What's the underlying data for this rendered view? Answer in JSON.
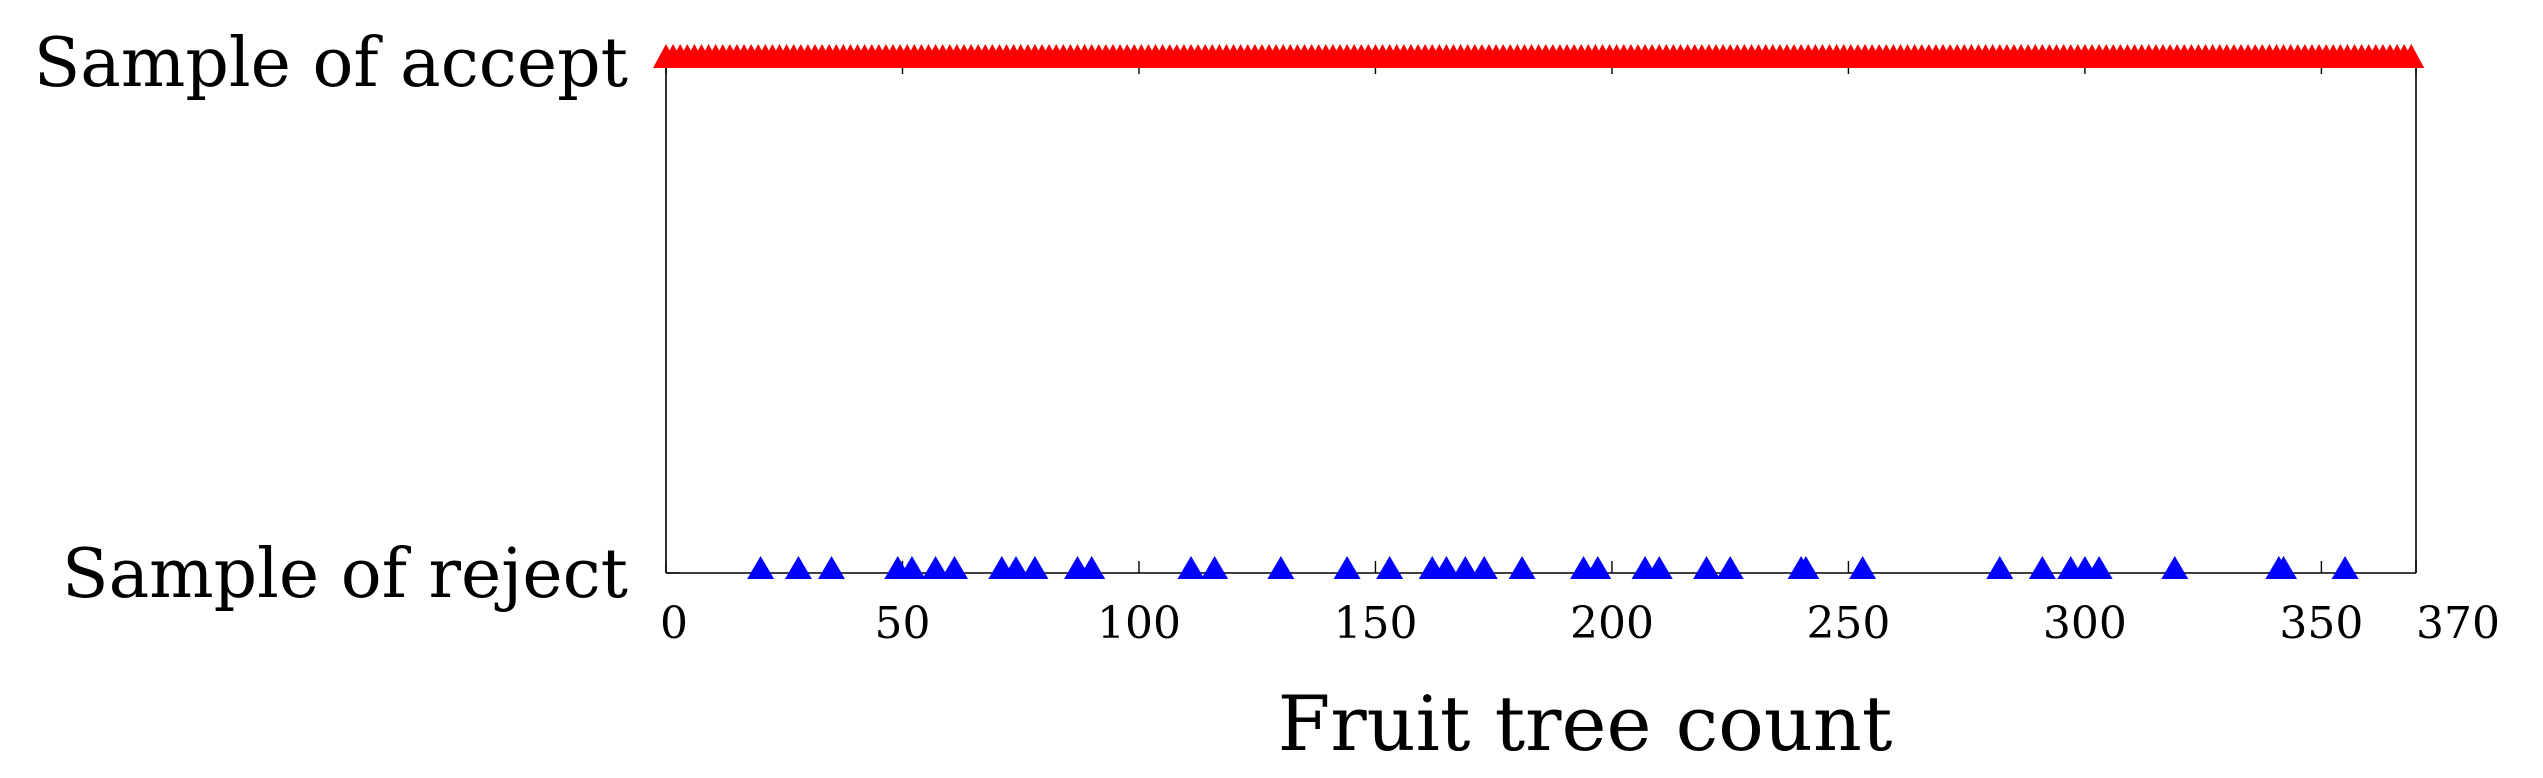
{
  "chart_data": {
    "type": "scatter",
    "title": "",
    "xlabel": "Fruit tree count",
    "ylabel": "",
    "xlim": [
      0,
      370
    ],
    "xticks": [
      "0",
      "50",
      "100",
      "150",
      "200",
      "250",
      "300",
      "350",
      "370"
    ],
    "ytick_labels": [
      "Sample of accept",
      "Sample of reject"
    ],
    "grid": false,
    "legend": "none",
    "series": [
      {
        "category": "Sample of accept",
        "color": "#ff0000",
        "marker": "triangle",
        "x": [
          0,
          1.5,
          3,
          4.5,
          6,
          7.5,
          9,
          10.5,
          12,
          13.5,
          15,
          16.5,
          18,
          19.5,
          21,
          22.5,
          24,
          25.5,
          27,
          28.5,
          30,
          31.5,
          33,
          34.5,
          36,
          37.5,
          39,
          40.5,
          42,
          43.5,
          45,
          46.5,
          48,
          49.5,
          51,
          52.5,
          54,
          55.5,
          57,
          58.5,
          60,
          61.5,
          63,
          64.5,
          66,
          67.5,
          69,
          70.5,
          72,
          73.5,
          75,
          76.5,
          78,
          79.5,
          81,
          82.5,
          84,
          85.5,
          87,
          88.5,
          90,
          91.5,
          93,
          94.5,
          96,
          97.5,
          99,
          100.5,
          102,
          103.5,
          105,
          106.5,
          108,
          109.5,
          111,
          112.5,
          114,
          115.5,
          117,
          118.5,
          120,
          121.5,
          123,
          124.5,
          126,
          127.5,
          129,
          130.5,
          132,
          133.5,
          135,
          136.5,
          138,
          139.5,
          141,
          142.5,
          144,
          145.5,
          147,
          148.5,
          150,
          151.5,
          153,
          154.5,
          156,
          157.5,
          159,
          160.5,
          162,
          163.5,
          165,
          166.5,
          168,
          169.5,
          171,
          172.5,
          174,
          175.5,
          177,
          178.5,
          180,
          181.5,
          183,
          184.5,
          186,
          187.5,
          189,
          190.5,
          192,
          193.5,
          195,
          196.5,
          198,
          199.5,
          201,
          202.5,
          204,
          205.5,
          207,
          208.5,
          210,
          211.5,
          213,
          214.5,
          216,
          217.5,
          219,
          220.5,
          222,
          223.5,
          225,
          226.5,
          228,
          229.5,
          231,
          232.5,
          234,
          235.5,
          237,
          238.5,
          240,
          241.5,
          243,
          244.5,
          246,
          247.5,
          249,
          250.5,
          252,
          253.5,
          255,
          256.5,
          258,
          259.5,
          261,
          262.5,
          264,
          265.5,
          267,
          268.5,
          270,
          271.5,
          273,
          274.5,
          276,
          277.5,
          279,
          280.5,
          282,
          283.5,
          285,
          286.5,
          288,
          289.5,
          291,
          292.5,
          294,
          295.5,
          297,
          298.5,
          300,
          301.5,
          303,
          304.5,
          306,
          307.5,
          309,
          310.5,
          312,
          313.5,
          315,
          316.5,
          318,
          319.5,
          321,
          322.5,
          324,
          325.5,
          327,
          328.5,
          330,
          331.5,
          333,
          334.5,
          336,
          337.5,
          339,
          340.5,
          342,
          343.5,
          345,
          346.5,
          348,
          349.5,
          351,
          352.5,
          354,
          355.5,
          357,
          358.5,
          360,
          361.5,
          363,
          364.5,
          366,
          367.5,
          369
        ]
      },
      {
        "category": "Sample of reject",
        "color": "#0000ff",
        "marker": "triangle",
        "x": [
          20,
          28,
          35,
          49,
          52,
          57,
          61,
          71,
          74,
          78,
          87,
          90,
          111,
          116,
          130,
          144,
          153,
          162,
          165,
          169,
          173,
          181,
          194,
          197,
          207,
          210,
          220,
          225,
          240,
          241,
          253,
          282,
          291,
          297,
          300,
          303,
          319,
          341,
          342,
          355
        ]
      }
    ]
  }
}
